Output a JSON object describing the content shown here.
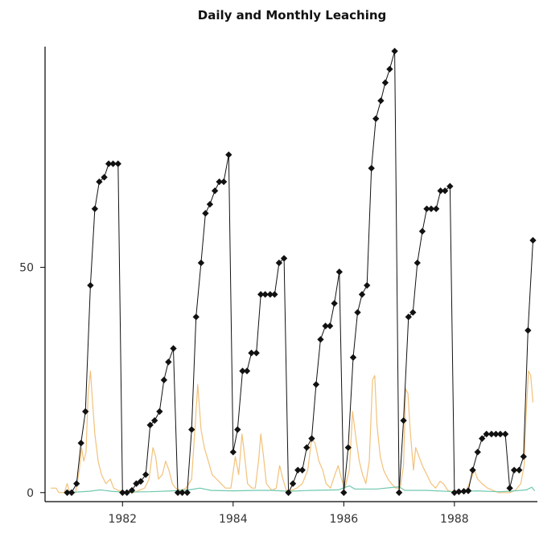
{
  "chart_data": {
    "type": "line",
    "title": "Daily and Monthly Leaching",
    "xlabel": "",
    "ylabel": "",
    "grid": false,
    "xlim": [
      1980.6,
      1989.5
    ],
    "ylim": [
      -2,
      99
    ],
    "x_ticks": [
      1982,
      1984,
      1986,
      1988
    ],
    "x_tick_labels": [
      "1982",
      "1984",
      "1986",
      "1988"
    ],
    "y_ticks": [
      0,
      50
    ],
    "y_tick_labels": [
      "0",
      "50"
    ],
    "colors": {
      "monthly": "#111111",
      "daily_orange": "#f2c27a",
      "daily_teal": "#6fc8ae",
      "axis": "#000000"
    },
    "series": [
      {
        "style": "line-with-diamond-markers",
        "color": "#111111",
        "points": [
          [
            1981.0,
            0
          ],
          [
            1981.08,
            0
          ],
          [
            1981.17,
            2
          ],
          [
            1981.25,
            11
          ],
          [
            1981.33,
            18
          ],
          [
            1981.42,
            46
          ],
          [
            1981.5,
            63
          ],
          [
            1981.58,
            69
          ],
          [
            1981.67,
            70
          ],
          [
            1981.75,
            73
          ],
          [
            1981.83,
            73
          ],
          [
            1981.92,
            73
          ],
          [
            1982.0,
            0
          ],
          [
            1982.08,
            0
          ],
          [
            1982.17,
            0.5
          ],
          [
            1982.25,
            2
          ],
          [
            1982.33,
            2.5
          ],
          [
            1982.42,
            4
          ],
          [
            1982.5,
            15
          ],
          [
            1982.58,
            16
          ],
          [
            1982.67,
            18
          ],
          [
            1982.75,
            25
          ],
          [
            1982.83,
            29
          ],
          [
            1982.92,
            32
          ],
          [
            1983.0,
            0
          ],
          [
            1983.08,
            0
          ],
          [
            1983.17,
            0
          ],
          [
            1983.25,
            14
          ],
          [
            1983.33,
            39
          ],
          [
            1983.42,
            51
          ],
          [
            1983.5,
            62
          ],
          [
            1983.58,
            64
          ],
          [
            1983.67,
            67
          ],
          [
            1983.75,
            69
          ],
          [
            1983.83,
            69
          ],
          [
            1983.92,
            75
          ],
          [
            1984.0,
            9
          ],
          [
            1984.08,
            14
          ],
          [
            1984.17,
            27
          ],
          [
            1984.25,
            27
          ],
          [
            1984.33,
            31
          ],
          [
            1984.42,
            31
          ],
          [
            1984.5,
            44
          ],
          [
            1984.58,
            44
          ],
          [
            1984.67,
            44
          ],
          [
            1984.75,
            44
          ],
          [
            1984.83,
            51
          ],
          [
            1984.92,
            52
          ],
          [
            1985.0,
            0
          ],
          [
            1985.08,
            2
          ],
          [
            1985.17,
            5
          ],
          [
            1985.25,
            5
          ],
          [
            1985.33,
            10
          ],
          [
            1985.42,
            12
          ],
          [
            1985.5,
            24
          ],
          [
            1985.58,
            34
          ],
          [
            1985.67,
            37
          ],
          [
            1985.75,
            37
          ],
          [
            1985.83,
            42
          ],
          [
            1985.92,
            49
          ],
          [
            1986.0,
            0
          ],
          [
            1986.08,
            10
          ],
          [
            1986.17,
            30
          ],
          [
            1986.25,
            40
          ],
          [
            1986.33,
            44
          ],
          [
            1986.42,
            46
          ],
          [
            1986.5,
            72
          ],
          [
            1986.58,
            83
          ],
          [
            1986.67,
            87
          ],
          [
            1986.75,
            91
          ],
          [
            1986.83,
            94
          ],
          [
            1986.92,
            98
          ],
          [
            1987.0,
            0
          ],
          [
            1987.08,
            16
          ],
          [
            1987.17,
            39
          ],
          [
            1987.25,
            40
          ],
          [
            1987.33,
            51
          ],
          [
            1987.42,
            58
          ],
          [
            1987.5,
            63
          ],
          [
            1987.58,
            63
          ],
          [
            1987.67,
            63
          ],
          [
            1987.75,
            67
          ],
          [
            1987.83,
            67
          ],
          [
            1987.92,
            68
          ],
          [
            1988.0,
            0
          ],
          [
            1988.08,
            0.2
          ],
          [
            1988.17,
            0.3
          ],
          [
            1988.25,
            0.4
          ],
          [
            1988.33,
            5
          ],
          [
            1988.42,
            9
          ],
          [
            1988.5,
            12
          ],
          [
            1988.58,
            13
          ],
          [
            1988.67,
            13
          ],
          [
            1988.75,
            13
          ],
          [
            1988.83,
            13
          ],
          [
            1988.92,
            13
          ],
          [
            1989.0,
            1
          ],
          [
            1989.08,
            5
          ],
          [
            1989.17,
            5
          ],
          [
            1989.25,
            8
          ],
          [
            1989.33,
            36
          ],
          [
            1989.42,
            56
          ]
        ]
      },
      {
        "style": "line",
        "color": "#f2c27a",
        "points": [
          [
            1980.7,
            1
          ],
          [
            1980.8,
            1
          ],
          [
            1980.85,
            0
          ],
          [
            1980.95,
            0
          ],
          [
            1981.0,
            2
          ],
          [
            1981.05,
            0
          ],
          [
            1981.15,
            0
          ],
          [
            1981.22,
            5
          ],
          [
            1981.26,
            10
          ],
          [
            1981.3,
            7
          ],
          [
            1981.34,
            9
          ],
          [
            1981.38,
            22
          ],
          [
            1981.42,
            27
          ],
          [
            1981.46,
            20
          ],
          [
            1981.5,
            13
          ],
          [
            1981.56,
            7
          ],
          [
            1981.62,
            4
          ],
          [
            1981.7,
            2
          ],
          [
            1981.78,
            3
          ],
          [
            1981.84,
            1
          ],
          [
            1981.92,
            0.5
          ],
          [
            1982.0,
            0.2
          ],
          [
            1982.2,
            0
          ],
          [
            1982.4,
            1
          ],
          [
            1982.48,
            3
          ],
          [
            1982.55,
            10
          ],
          [
            1982.6,
            8
          ],
          [
            1982.65,
            3
          ],
          [
            1982.72,
            4
          ],
          [
            1982.78,
            7
          ],
          [
            1982.84,
            5
          ],
          [
            1982.9,
            2
          ],
          [
            1982.96,
            1
          ],
          [
            1983.05,
            0.5
          ],
          [
            1983.15,
            1
          ],
          [
            1983.25,
            3
          ],
          [
            1983.32,
            16
          ],
          [
            1983.36,
            24
          ],
          [
            1983.42,
            14
          ],
          [
            1983.48,
            10
          ],
          [
            1983.55,
            7
          ],
          [
            1983.62,
            4
          ],
          [
            1983.7,
            3
          ],
          [
            1983.78,
            2
          ],
          [
            1983.86,
            1
          ],
          [
            1983.96,
            1
          ],
          [
            1984.04,
            8
          ],
          [
            1984.1,
            4
          ],
          [
            1984.16,
            13
          ],
          [
            1984.2,
            9
          ],
          [
            1984.26,
            2
          ],
          [
            1984.34,
            1
          ],
          [
            1984.4,
            1
          ],
          [
            1984.46,
            7
          ],
          [
            1984.5,
            13
          ],
          [
            1984.55,
            8
          ],
          [
            1984.6,
            2
          ],
          [
            1984.7,
            0.5
          ],
          [
            1984.78,
            1
          ],
          [
            1984.84,
            6
          ],
          [
            1984.9,
            3
          ],
          [
            1984.96,
            0.5
          ],
          [
            1985.05,
            0.5
          ],
          [
            1985.15,
            1
          ],
          [
            1985.25,
            2
          ],
          [
            1985.35,
            5
          ],
          [
            1985.42,
            12
          ],
          [
            1985.48,
            11
          ],
          [
            1985.55,
            7
          ],
          [
            1985.62,
            5
          ],
          [
            1985.68,
            2
          ],
          [
            1985.76,
            1
          ],
          [
            1985.84,
            4
          ],
          [
            1985.9,
            6
          ],
          [
            1985.96,
            3
          ],
          [
            1986.02,
            1
          ],
          [
            1986.1,
            5
          ],
          [
            1986.16,
            18
          ],
          [
            1986.22,
            12
          ],
          [
            1986.28,
            7
          ],
          [
            1986.34,
            4
          ],
          [
            1986.4,
            2
          ],
          [
            1986.46,
            7
          ],
          [
            1986.52,
            25
          ],
          [
            1986.56,
            26
          ],
          [
            1986.6,
            15
          ],
          [
            1986.66,
            8
          ],
          [
            1986.72,
            5
          ],
          [
            1986.8,
            3
          ],
          [
            1986.86,
            2
          ],
          [
            1986.94,
            1
          ],
          [
            1987.02,
            1
          ],
          [
            1987.08,
            6
          ],
          [
            1987.12,
            23
          ],
          [
            1987.16,
            22
          ],
          [
            1987.2,
            14
          ],
          [
            1987.26,
            5
          ],
          [
            1987.3,
            10
          ],
          [
            1987.36,
            8
          ],
          [
            1987.42,
            6
          ],
          [
            1987.5,
            4
          ],
          [
            1987.58,
            2
          ],
          [
            1987.66,
            1
          ],
          [
            1987.74,
            2.5
          ],
          [
            1987.8,
            2
          ],
          [
            1987.88,
            0.5
          ],
          [
            1988.0,
            0
          ],
          [
            1988.2,
            0
          ],
          [
            1988.3,
            3
          ],
          [
            1988.36,
            5
          ],
          [
            1988.42,
            3
          ],
          [
            1988.5,
            2
          ],
          [
            1988.6,
            1
          ],
          [
            1988.7,
            0.5
          ],
          [
            1988.8,
            0
          ],
          [
            1989.0,
            0
          ],
          [
            1989.1,
            0.5
          ],
          [
            1989.2,
            2
          ],
          [
            1989.26,
            6
          ],
          [
            1989.3,
            18
          ],
          [
            1989.34,
            27
          ],
          [
            1989.38,
            26
          ],
          [
            1989.42,
            20
          ]
        ]
      },
      {
        "style": "line",
        "color": "#6fc8ae",
        "points": [
          [
            1981.0,
            0
          ],
          [
            1981.4,
            0.3
          ],
          [
            1981.6,
            0.6
          ],
          [
            1981.8,
            0.3
          ],
          [
            1982.0,
            0.1
          ],
          [
            1982.5,
            0.2
          ],
          [
            1982.9,
            0.4
          ],
          [
            1983.2,
            0.6
          ],
          [
            1983.4,
            1.0
          ],
          [
            1983.6,
            0.5
          ],
          [
            1984.0,
            0.4
          ],
          [
            1984.4,
            0.5
          ],
          [
            1984.7,
            0.5
          ],
          [
            1985.0,
            0.3
          ],
          [
            1985.4,
            0.5
          ],
          [
            1985.9,
            0.6
          ],
          [
            1986.1,
            1.5
          ],
          [
            1986.2,
            0.8
          ],
          [
            1986.6,
            0.8
          ],
          [
            1987.0,
            1.3
          ],
          [
            1987.1,
            0.5
          ],
          [
            1987.5,
            0.5
          ],
          [
            1988.0,
            0.2
          ],
          [
            1988.4,
            0.4
          ],
          [
            1988.8,
            0.2
          ],
          [
            1989.0,
            0.3
          ],
          [
            1989.3,
            0.6
          ],
          [
            1989.4,
            1.2
          ],
          [
            1989.45,
            0.4
          ]
        ]
      }
    ]
  }
}
